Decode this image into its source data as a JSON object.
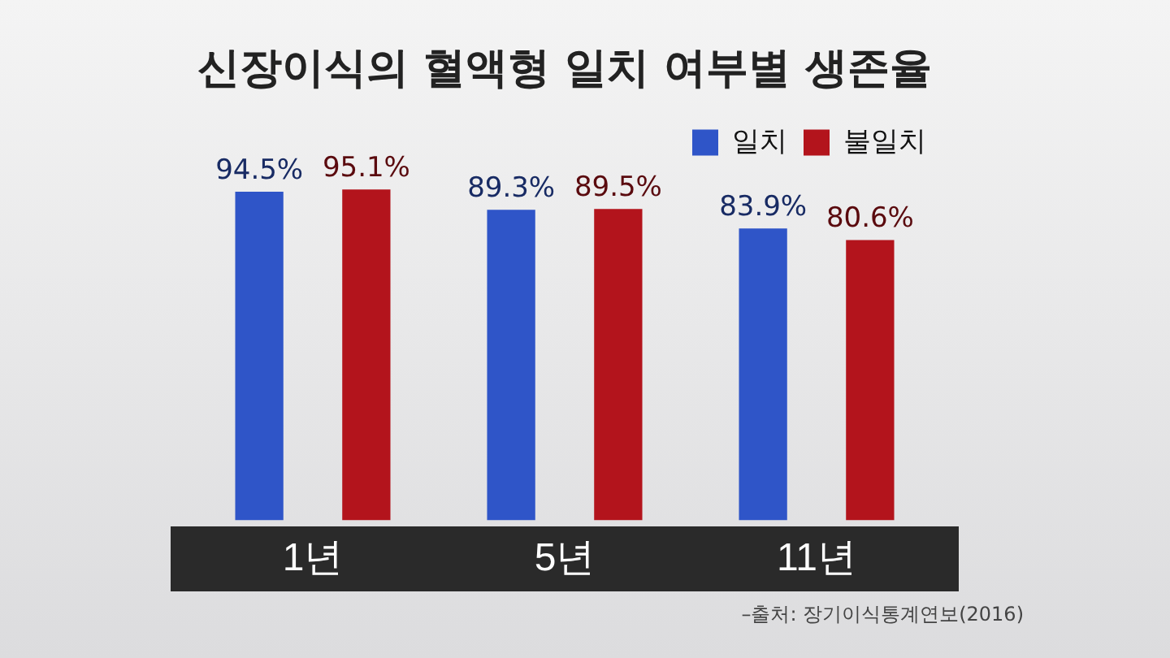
{
  "chart_data": {
    "type": "bar",
    "title": "신장이식의 혈액형 일치 여부별 생존율",
    "categories": [
      "1년",
      "5년",
      "11년"
    ],
    "series": [
      {
        "name": "일치",
        "color": "#2f55c8",
        "values": [
          94.5,
          89.3,
          83.9
        ],
        "value_labels": [
          "94.5%",
          "89.3%",
          "83.9%"
        ]
      },
      {
        "name": "불일치",
        "color": "#b3141c",
        "values": [
          95.1,
          89.5,
          80.6
        ],
        "value_labels": [
          "95.1%",
          "89.5%",
          "80.6%"
        ]
      }
    ],
    "tick_labels": "x",
    "grid": false,
    "legend": "top right",
    "annotations": [
      "–출처: 장기이식통계연보(2016)"
    ]
  }
}
